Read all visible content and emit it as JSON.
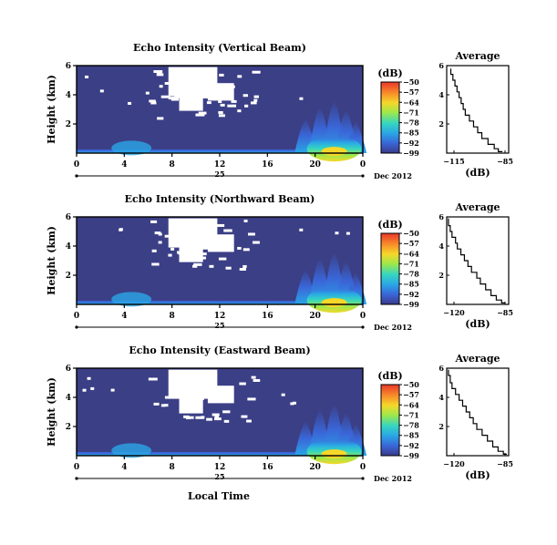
{
  "chart_data": {
    "type": "heatmap",
    "date_label": "Dec 2012",
    "xlabel_bottom": "Local Time",
    "colorbar": {
      "unit_label": "(dB)",
      "ticks": [
        -50,
        -57,
        -64,
        -71,
        -78,
        -85,
        -92,
        -99
      ],
      "colors": [
        "#e8382a",
        "#f8892a",
        "#f6d72a",
        "#9ee84a",
        "#36d6c0",
        "#2aa6e6",
        "#3a66d8",
        "#3a3a8a"
      ]
    },
    "panels": [
      {
        "title": "Echo Intensity (Vertical Beam)",
        "ylabel": "Height (km)",
        "y_ticks": [
          "6",
          "4",
          "2"
        ],
        "x_ticks": [
          "0",
          "4",
          "8",
          "12",
          "16",
          "20",
          "0"
        ],
        "day_label": "25",
        "date_label": "Dec 2012",
        "ylim": [
          0,
          6
        ],
        "xlim": [
          0,
          24
        ],
        "average": {
          "title": "Average",
          "xlabel": "(dB)",
          "x_ticks": [
            "-115",
            "-85"
          ],
          "y_ticks": [
            "6",
            "4",
            "2"
          ],
          "xlim": [
            -115,
            -85
          ],
          "profile": [
            [
              -113,
              5.8
            ],
            [
              -112,
              5.4
            ],
            [
              -111,
              5.0
            ],
            [
              -110,
              4.6
            ],
            [
              -109,
              4.2
            ],
            [
              -108,
              3.8
            ],
            [
              -107,
              3.4
            ],
            [
              -106,
              3.0
            ],
            [
              -104,
              2.6
            ],
            [
              -102,
              2.2
            ],
            [
              -100,
              1.8
            ],
            [
              -98,
              1.4
            ],
            [
              -95,
              1.0
            ],
            [
              -92,
              0.6
            ],
            [
              -90,
              0.3
            ],
            [
              -88,
              0.1
            ]
          ]
        }
      },
      {
        "title": "Echo Intensity (Northward Beam)",
        "ylabel": "Height (km)",
        "y_ticks": [
          "6",
          "4",
          "2"
        ],
        "x_ticks": [
          "0",
          "4",
          "8",
          "12",
          "16",
          "20",
          "0"
        ],
        "day_label": "25",
        "date_label": "Dec 2012",
        "ylim": [
          0,
          6
        ],
        "xlim": [
          0,
          24
        ],
        "average": {
          "title": "Average",
          "xlabel": "(dB)",
          "x_ticks": [
            "-120",
            "-85"
          ],
          "y_ticks": [
            "6",
            "4",
            "2"
          ],
          "xlim": [
            -120,
            -85
          ],
          "profile": [
            [
              -119,
              5.9
            ],
            [
              -118,
              5.4
            ],
            [
              -117,
              5.0
            ],
            [
              -115,
              4.6
            ],
            [
              -114,
              4.2
            ],
            [
              -112,
              3.8
            ],
            [
              -110,
              3.4
            ],
            [
              -108,
              3.0
            ],
            [
              -106,
              2.6
            ],
            [
              -103,
              2.2
            ],
            [
              -101,
              1.8
            ],
            [
              -98,
              1.4
            ],
            [
              -95,
              1.0
            ],
            [
              -92,
              0.6
            ],
            [
              -89,
              0.3
            ],
            [
              -87,
              0.1
            ]
          ]
        }
      },
      {
        "title": "Echo Intensity (Eastward Beam)",
        "ylabel": "Height (km)",
        "y_ticks": [
          "6",
          "4",
          "2"
        ],
        "x_ticks": [
          "0",
          "4",
          "8",
          "12",
          "16",
          "20",
          "0"
        ],
        "day_label": "25",
        "date_label": "Dec 2012",
        "ylim": [
          0,
          6
        ],
        "xlim": [
          0,
          24
        ],
        "average": {
          "title": "Average",
          "xlabel": "(dB)",
          "x_ticks": [
            "-120",
            "-85"
          ],
          "y_ticks": [
            "6",
            "4",
            "2"
          ],
          "xlim": [
            -120,
            -85
          ],
          "profile": [
            [
              -119,
              5.9
            ],
            [
              -118,
              5.5
            ],
            [
              -117,
              5.0
            ],
            [
              -115,
              4.6
            ],
            [
              -113,
              4.2
            ],
            [
              -111,
              3.8
            ],
            [
              -109,
              3.4
            ],
            [
              -107,
              3.0
            ],
            [
              -105,
              2.6
            ],
            [
              -103,
              2.2
            ],
            [
              -100,
              1.8
            ],
            [
              -97,
              1.4
            ],
            [
              -94,
              1.0
            ],
            [
              -91,
              0.6
            ],
            [
              -88,
              0.3
            ],
            [
              -86,
              0.1
            ]
          ]
        }
      }
    ]
  }
}
